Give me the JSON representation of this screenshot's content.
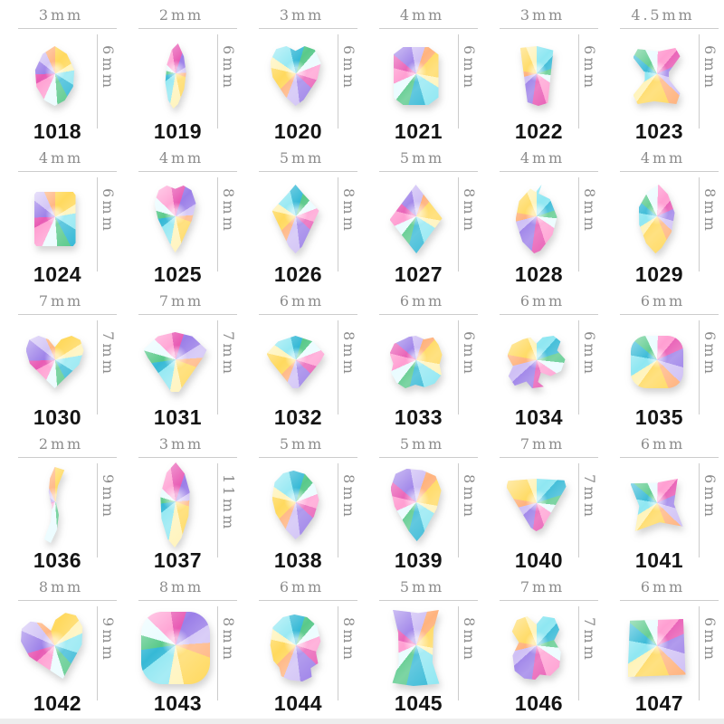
{
  "catalog": {
    "products": [
      {
        "id": "1018",
        "width": "3mm",
        "height": "6mm",
        "shape": "marquise"
      },
      {
        "id": "1019",
        "width": "2mm",
        "height": "6mm",
        "shape": "teardrop"
      },
      {
        "id": "1020",
        "width": "3mm",
        "height": "6mm",
        "shape": "pear"
      },
      {
        "id": "1021",
        "width": "4mm",
        "height": "6mm",
        "shape": "octagon"
      },
      {
        "id": "1022",
        "width": "3mm",
        "height": "6mm",
        "shape": "shard"
      },
      {
        "id": "1023",
        "width": "4.5mm",
        "height": "6mm",
        "shape": "bone"
      },
      {
        "id": "1024",
        "width": "4mm",
        "height": "6mm",
        "shape": "rectangle"
      },
      {
        "id": "1025",
        "width": "4mm",
        "height": "8mm",
        "shape": "shield"
      },
      {
        "id": "1026",
        "width": "5mm",
        "height": "8mm",
        "shape": "kite"
      },
      {
        "id": "1027",
        "width": "5mm",
        "height": "8mm",
        "shape": "rhombus"
      },
      {
        "id": "1028",
        "width": "4mm",
        "height": "8mm",
        "shape": "flame"
      },
      {
        "id": "1029",
        "width": "4mm",
        "height": "8mm",
        "shape": "leaf"
      },
      {
        "id": "1030",
        "width": "7mm",
        "height": "7mm",
        "shape": "heart"
      },
      {
        "id": "1031",
        "width": "7mm",
        "height": "7mm",
        "shape": "diamond"
      },
      {
        "id": "1032",
        "width": "6mm",
        "height": "8mm",
        "shape": "fan"
      },
      {
        "id": "1033",
        "width": "6mm",
        "height": "6mm",
        "shape": "flower"
      },
      {
        "id": "1034",
        "width": "6mm",
        "height": "6mm",
        "shape": "butterfly"
      },
      {
        "id": "1035",
        "width": "6mm",
        "height": "6mm",
        "shape": "cushion"
      },
      {
        "id": "1036",
        "width": "2mm",
        "height": "9mm",
        "shape": "wave"
      },
      {
        "id": "1037",
        "width": "3mm",
        "height": "11mm",
        "shape": "long-marquise"
      },
      {
        "id": "1038",
        "width": "5mm",
        "height": "8mm",
        "shape": "pear-down"
      },
      {
        "id": "1039",
        "width": "5mm",
        "height": "8mm",
        "shape": "shield-down"
      },
      {
        "id": "1040",
        "width": "7mm",
        "height": "7mm",
        "shape": "triangle-down"
      },
      {
        "id": "1041",
        "width": "6mm",
        "height": "6mm",
        "shape": "twisted-square"
      },
      {
        "id": "1042",
        "width": "8mm",
        "height": "9mm",
        "shape": "tilted-heart"
      },
      {
        "id": "1043",
        "width": "8mm",
        "height": "8mm",
        "shape": "cushion"
      },
      {
        "id": "1044",
        "width": "6mm",
        "height": "8mm",
        "shape": "skull"
      },
      {
        "id": "1045",
        "width": "5mm",
        "height": "8mm",
        "shape": "concave-rect"
      },
      {
        "id": "1046",
        "width": "7mm",
        "height": "7mm",
        "shape": "bear"
      },
      {
        "id": "1047",
        "width": "6mm",
        "height": "6mm",
        "shape": "pyramid-square"
      }
    ],
    "colors": {
      "label_gray": "#8c8c8c",
      "line_gray": "#cccccc",
      "number_black": "#141414",
      "ab_crystal_palette": [
        "#ffd95e",
        "#8fe7f2",
        "#36b9d6",
        "#59c98a",
        "#ff9fd2",
        "#e85bb4",
        "#9b7fe8",
        "#cfc0f5",
        "#ffb37e",
        "#eafcff"
      ]
    }
  }
}
